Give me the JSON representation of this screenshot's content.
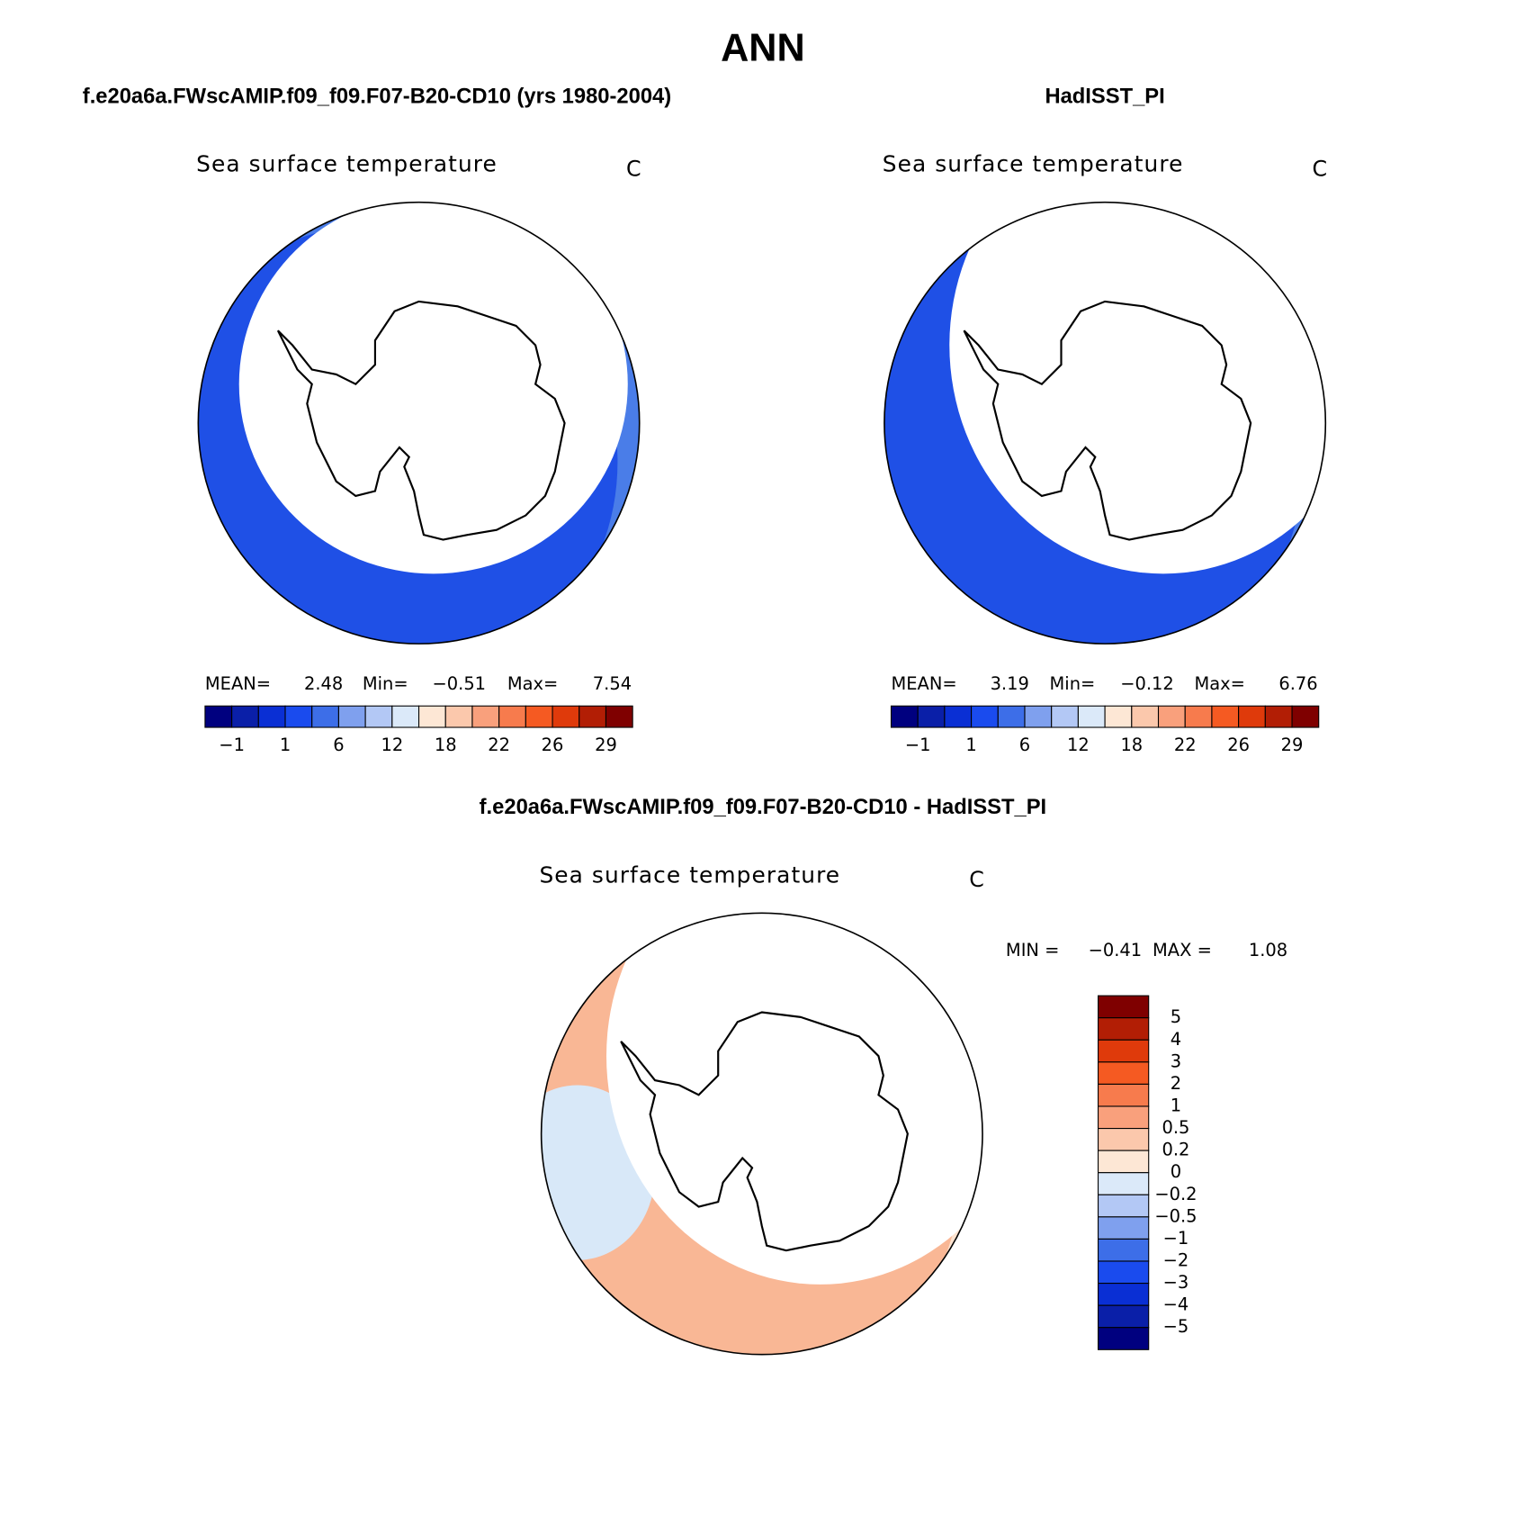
{
  "title": "ANN",
  "panels": [
    {
      "case": "f.e20a6a.FWscAMIP.f09_f09.F07-B20-CD10 (yrs 1980-2004)",
      "variable": "Sea surface temperature",
      "units": "C",
      "stats": [
        {
          "label": "MEAN=",
          "value": "2.48"
        },
        {
          "label": "Min=",
          "value": "−0.51"
        },
        {
          "label": "Max=",
          "value": "7.54"
        }
      ],
      "colorbar": {
        "labels": [
          "−1",
          "1",
          "6",
          "12",
          "18",
          "22",
          "26",
          "29"
        ],
        "colors": [
          "#00007f",
          "#0a1fa8",
          "#0a2fd4",
          "#1a4bee",
          "#3d6ee8",
          "#7fa0ee",
          "#b3c8f5",
          "#dbe9f9",
          "#fde7d5",
          "#fbc8ac",
          "#f9a07c",
          "#f77b4d",
          "#f55a22",
          "#df3a0b",
          "#b21e05",
          "#7f0000"
        ]
      }
    },
    {
      "case": "HadISST_PI",
      "variable": "Sea surface temperature",
      "units": "C",
      "stats": [
        {
          "label": "MEAN=",
          "value": "3.19"
        },
        {
          "label": "Min=",
          "value": "−0.12"
        },
        {
          "label": "Max=",
          "value": "6.76"
        }
      ],
      "colorbar": {
        "labels": [
          "−1",
          "1",
          "6",
          "12",
          "18",
          "22",
          "26",
          "29"
        ],
        "colors": [
          "#00007f",
          "#0a1fa8",
          "#0a2fd4",
          "#1a4bee",
          "#3d6ee8",
          "#7fa0ee",
          "#b3c8f5",
          "#dbe9f9",
          "#fde7d5",
          "#fbc8ac",
          "#f9a07c",
          "#f77b4d",
          "#f55a22",
          "#df3a0b",
          "#b21e05",
          "#7f0000"
        ]
      }
    },
    {
      "case": "f.e20a6a.FWscAMIP.f09_f09.F07-B20-CD10 - HadISST_PI",
      "variable": "Sea surface temperature",
      "units": "C",
      "stats": [
        {
          "label": "MIN =",
          "value": "−0.41"
        },
        {
          "label": "MAX =",
          "value": "1.08"
        }
      ],
      "colorbar": {
        "labels": [
          "5",
          "4",
          "3",
          "2",
          "1",
          "0.5",
          "0.2",
          "0",
          "−0.2",
          "−0.5",
          "−1",
          "−2",
          "−3",
          "−4",
          "−5"
        ],
        "colors": [
          "#7f0000",
          "#b21e05",
          "#df3a0b",
          "#f55a22",
          "#f77b4d",
          "#f9a07c",
          "#fbc8ac",
          "#fde7d5",
          "#dbe9f9",
          "#b3c8f5",
          "#7fa0ee",
          "#3d6ee8",
          "#1a4bee",
          "#0a2fd4",
          "#0a1fa8",
          "#00007f"
        ]
      }
    }
  ]
}
